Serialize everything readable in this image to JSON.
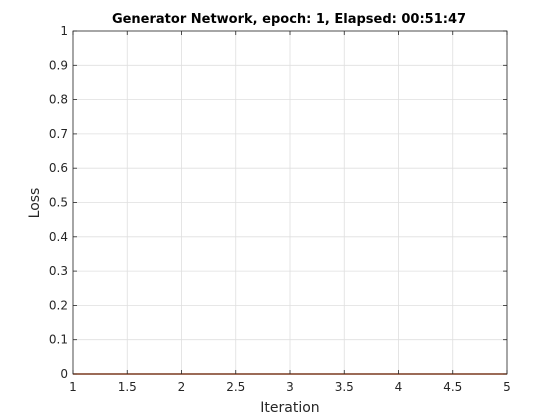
{
  "figure": {
    "background": "#ffffff"
  },
  "chart_data": {
    "type": "line",
    "title": "Generator Network,  epoch: 1, Elapsed: 00:51:47",
    "xlabel": "Iteration",
    "ylabel": "Loss",
    "xlim": [
      1,
      5
    ],
    "ylim": [
      0,
      1
    ],
    "x_ticks": [
      "1",
      "1.5",
      "2",
      "2.5",
      "3",
      "3.5",
      "4",
      "4.5",
      "5"
    ],
    "y_ticks": [
      "0",
      "0.1",
      "0.2",
      "0.3",
      "0.4",
      "0.5",
      "0.6",
      "0.7",
      "0.8",
      "0.9",
      "1"
    ],
    "grid": true,
    "box": true,
    "series": [
      {
        "color": "#d95319",
        "x": [
          1,
          2,
          3,
          4,
          5
        ],
        "y": [
          0,
          0,
          0,
          0,
          0
        ]
      }
    ]
  }
}
